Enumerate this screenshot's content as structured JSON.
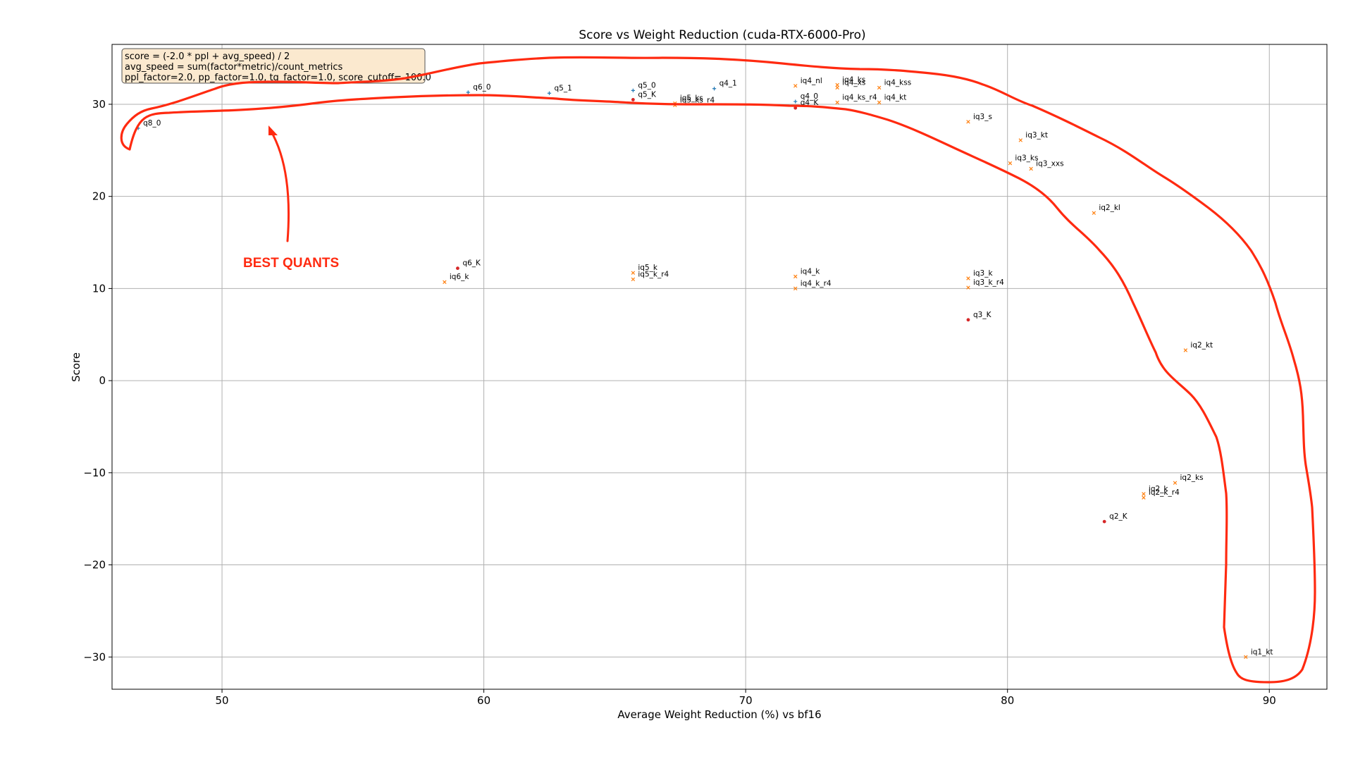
{
  "chart_data": {
    "type": "scatter",
    "title": "Score vs Weight Reduction (cuda-RTX-6000-Pro)",
    "xlabel": "Average Weight Reduction (%) vs bf16",
    "ylabel": "Score",
    "xlim": [
      45.8,
      92.2
    ],
    "ylim": [
      -33.5,
      36.5
    ],
    "xticks": [
      50,
      60,
      70,
      80,
      90
    ],
    "yticks": [
      -30,
      -20,
      -10,
      0,
      10,
      20,
      30
    ],
    "grid": true,
    "formula_box": [
      "score = (-2.0 * ppl + avg_speed) / 2",
      "avg_speed = sum(factor*metric)/count_metrics",
      "ppl_factor=2.0, pp_factor=1.0, tg_factor=1.0, score_cutoff=-100.0"
    ],
    "annotation": "BEST QUANTS",
    "colors": {
      "blue": "#1f77b4",
      "orange": "#ff7f0e",
      "red": "#d62728",
      "highlight": "#ff2a10"
    },
    "points": [
      {
        "label": "q8_0",
        "x": 46.8,
        "y": 27.4,
        "color": "blue",
        "marker": "plus"
      },
      {
        "label": "q6_0",
        "x": 59.4,
        "y": 31.3,
        "color": "blue",
        "marker": "plus"
      },
      {
        "label": "q5_1",
        "x": 62.5,
        "y": 31.2,
        "color": "blue",
        "marker": "plus"
      },
      {
        "label": "q5_0",
        "x": 65.7,
        "y": 31.5,
        "color": "blue",
        "marker": "plus"
      },
      {
        "label": "q5_K",
        "x": 65.7,
        "y": 30.5,
        "color": "red",
        "marker": "dot"
      },
      {
        "label": "q4_1",
        "x": 68.8,
        "y": 31.7,
        "color": "blue",
        "marker": "plus"
      },
      {
        "label": "iq5_ks",
        "x": 67.3,
        "y": 30.1,
        "color": "orange",
        "marker": "x"
      },
      {
        "label": "iq5_ks_r4",
        "x": 67.3,
        "y": 29.9,
        "color": "orange",
        "marker": "x"
      },
      {
        "label": "iq4_nl",
        "x": 71.9,
        "y": 32.0,
        "color": "orange",
        "marker": "x"
      },
      {
        "label": "q4_0",
        "x": 71.9,
        "y": 30.3,
        "color": "blue",
        "marker": "plus"
      },
      {
        "label": "q4_K",
        "x": 71.9,
        "y": 29.6,
        "color": "red",
        "marker": "dot"
      },
      {
        "label": "iq4_ks",
        "x": 73.5,
        "y": 32.1,
        "color": "orange",
        "marker": "x"
      },
      {
        "label": "iq4_xs",
        "x": 73.5,
        "y": 31.8,
        "color": "orange",
        "marker": "x"
      },
      {
        "label": "iq4_ks_r4",
        "x": 73.5,
        "y": 30.2,
        "color": "orange",
        "marker": "x"
      },
      {
        "label": "iq4_kss",
        "x": 75.1,
        "y": 31.8,
        "color": "orange",
        "marker": "x"
      },
      {
        "label": "iq4_kt",
        "x": 75.1,
        "y": 30.2,
        "color": "orange",
        "marker": "x"
      },
      {
        "label": "iq3_s",
        "x": 78.5,
        "y": 28.1,
        "color": "orange",
        "marker": "x"
      },
      {
        "label": "iq3_kt",
        "x": 80.5,
        "y": 26.1,
        "color": "orange",
        "marker": "x"
      },
      {
        "label": "iq3_ks",
        "x": 80.1,
        "y": 23.6,
        "color": "orange",
        "marker": "x"
      },
      {
        "label": "iq3_xxs",
        "x": 80.9,
        "y": 23.0,
        "color": "orange",
        "marker": "x"
      },
      {
        "label": "iq2_kl",
        "x": 83.3,
        "y": 18.2,
        "color": "orange",
        "marker": "x"
      },
      {
        "label": "q6_K",
        "x": 59.0,
        "y": 12.2,
        "color": "red",
        "marker": "dot"
      },
      {
        "label": "iq6_k",
        "x": 58.5,
        "y": 10.7,
        "color": "orange",
        "marker": "x"
      },
      {
        "label": "iq5_k",
        "x": 65.7,
        "y": 11.7,
        "color": "orange",
        "marker": "x"
      },
      {
        "label": "iq5_k_r4",
        "x": 65.7,
        "y": 11.0,
        "color": "orange",
        "marker": "x"
      },
      {
        "label": "iq4_k",
        "x": 71.9,
        "y": 11.3,
        "color": "orange",
        "marker": "x"
      },
      {
        "label": "iq4_k_r4",
        "x": 71.9,
        "y": 10.0,
        "color": "orange",
        "marker": "x"
      },
      {
        "label": "iq3_k",
        "x": 78.5,
        "y": 11.1,
        "color": "orange",
        "marker": "x"
      },
      {
        "label": "iq3_k_r4",
        "x": 78.5,
        "y": 10.1,
        "color": "orange",
        "marker": "x"
      },
      {
        "label": "q3_K",
        "x": 78.5,
        "y": 6.6,
        "color": "red",
        "marker": "dot"
      },
      {
        "label": "iq2_kt",
        "x": 86.8,
        "y": 3.3,
        "color": "orange",
        "marker": "x"
      },
      {
        "label": "iq2_ks",
        "x": 86.4,
        "y": -11.1,
        "color": "orange",
        "marker": "x"
      },
      {
        "label": "iq2_k",
        "x": 85.2,
        "y": -12.3,
        "color": "orange",
        "marker": "x"
      },
      {
        "label": "iq2_k_r4",
        "x": 85.2,
        "y": -12.7,
        "color": "orange",
        "marker": "x"
      },
      {
        "label": "q2_K",
        "x": 83.7,
        "y": -15.3,
        "color": "red",
        "marker": "dot"
      },
      {
        "label": "iq1_kt",
        "x": 89.1,
        "y": -30.0,
        "color": "orange",
        "marker": "x"
      }
    ]
  }
}
